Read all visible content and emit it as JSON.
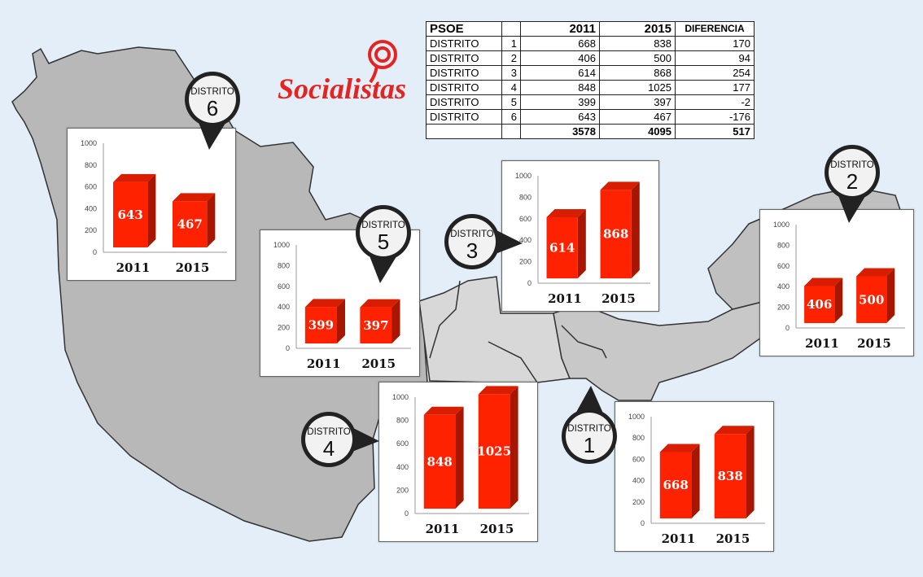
{
  "brand": {
    "logo_text": "Socialistas",
    "color": "#e52421"
  },
  "table": {
    "headers": [
      "PSOE",
      "",
      "2011",
      "2015",
      "DIFERENCIA"
    ],
    "rows": [
      [
        "DISTRITO",
        "1",
        "668",
        "838",
        "170"
      ],
      [
        "DISTRITO",
        "2",
        "406",
        "500",
        "94"
      ],
      [
        "DISTRITO",
        "3",
        "614",
        "868",
        "254"
      ],
      [
        "DISTRITO",
        "4",
        "848",
        "1025",
        "177"
      ],
      [
        "DISTRITO",
        "5",
        "399",
        "397",
        "-2"
      ],
      [
        "DISTRITO",
        "6",
        "643",
        "467",
        "-176"
      ]
    ],
    "totals": [
      "",
      "",
      "3578",
      "4095",
      "517"
    ]
  },
  "badge_label": "DISTRITO",
  "chart_data": [
    {
      "type": "bar",
      "district": "6",
      "categories": [
        "2011",
        "2015"
      ],
      "values": [
        643,
        467
      ],
      "yticks": [
        0,
        200,
        400,
        600,
        800,
        1000
      ],
      "ylim": [
        0,
        1000
      ],
      "bar_color": "#ff2200"
    },
    {
      "type": "bar",
      "district": "5",
      "categories": [
        "2011",
        "2015"
      ],
      "values": [
        399,
        397
      ],
      "yticks": [
        0,
        200,
        400,
        600,
        800,
        1000
      ],
      "ylim": [
        0,
        1000
      ],
      "bar_color": "#ff2200"
    },
    {
      "type": "bar",
      "district": "3",
      "categories": [
        "2011",
        "2015"
      ],
      "values": [
        614,
        868
      ],
      "yticks": [
        0,
        200,
        400,
        600,
        800,
        1000
      ],
      "ylim": [
        0,
        1000
      ],
      "bar_color": "#ff2200"
    },
    {
      "type": "bar",
      "district": "2",
      "categories": [
        "2011",
        "2015"
      ],
      "values": [
        406,
        500
      ],
      "yticks": [
        0,
        200,
        400,
        600,
        800,
        1000
      ],
      "ylim": [
        0,
        1000
      ],
      "bar_color": "#ff2200"
    },
    {
      "type": "bar",
      "district": "4",
      "categories": [
        "2011",
        "2015"
      ],
      "values": [
        848,
        1025
      ],
      "yticks": [
        0,
        200,
        400,
        600,
        800,
        1000
      ],
      "ylim": [
        0,
        1000
      ],
      "bar_color": "#ff2200"
    },
    {
      "type": "bar",
      "district": "1",
      "categories": [
        "2011",
        "2015"
      ],
      "values": [
        668,
        838
      ],
      "yticks": [
        0,
        200,
        400,
        600,
        800,
        1000
      ],
      "ylim": [
        0,
        1000
      ],
      "bar_color": "#ff2200"
    }
  ]
}
